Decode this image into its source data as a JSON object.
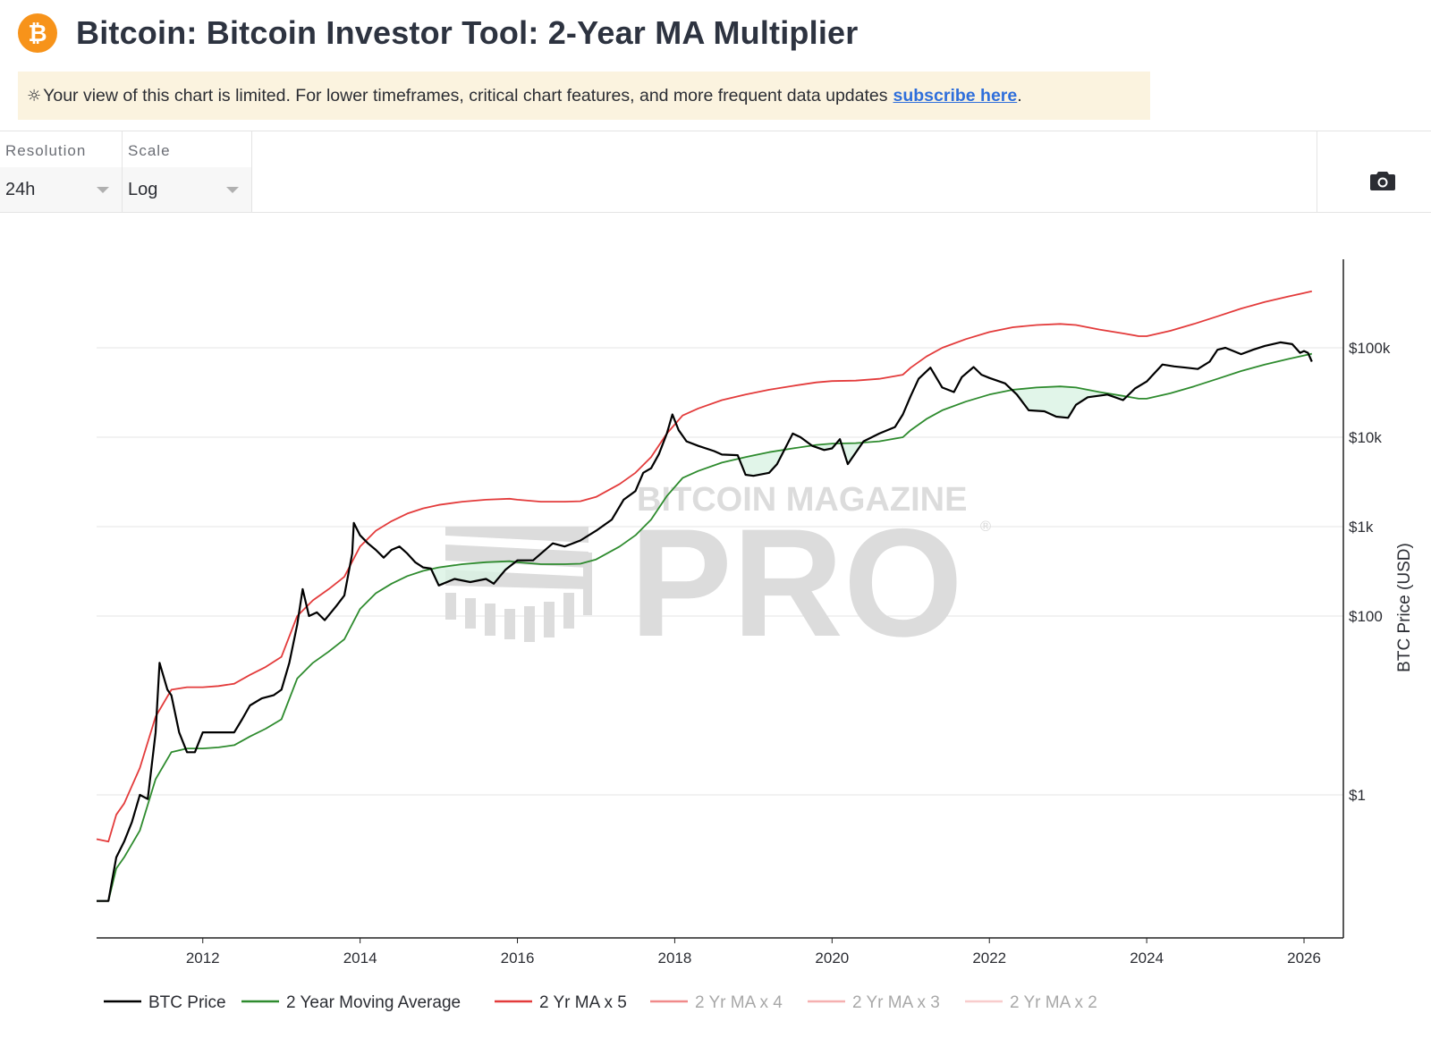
{
  "header": {
    "title": "Bitcoin: Bitcoin Investor Tool: 2-Year MA Multiplier",
    "logo_glyph": "₿",
    "logo_color": "#f7931a"
  },
  "notice": {
    "icon": "sun-icon",
    "text": "Your view of this chart is limited. For lower timeframes, critical chart features, and more frequent data updates",
    "link_text": "subscribe here",
    "suffix": "."
  },
  "controls": {
    "resolution": {
      "label": "Resolution",
      "value": "24h"
    },
    "scale": {
      "label": "Scale",
      "value": "Log"
    },
    "screenshot_icon": "camera-icon"
  },
  "watermark": {
    "top": "BITCOIN MAGAZINE",
    "main": "PRO",
    "mark": "®"
  },
  "chart_data": {
    "type": "line",
    "ylabel": "BTC Price (USD)",
    "yscale": "log",
    "ylim": [
      0.05,
      1000000
    ],
    "xlim": [
      2010.65,
      2026.5
    ],
    "x_ticks": [
      "2012",
      "2014",
      "2016",
      "2018",
      "2020",
      "2022",
      "2024",
      "2026"
    ],
    "y_ticks": [
      {
        "value": 1,
        "label": "$1"
      },
      {
        "value": 100,
        "label": "$100"
      },
      {
        "value": 1000,
        "label": "$1k"
      },
      {
        "value": 10000,
        "label": "$10k"
      },
      {
        "value": 100000,
        "label": "$100k"
      }
    ],
    "grid": true,
    "legend_position": "bottom",
    "series": [
      {
        "name": "BTC Price",
        "color": "#000000",
        "points": [
          [
            2010.65,
            0.065
          ],
          [
            2010.8,
            0.065
          ],
          [
            2010.9,
            0.2
          ],
          [
            2011.0,
            0.3
          ],
          [
            2011.1,
            0.5
          ],
          [
            2011.2,
            1.0
          ],
          [
            2011.3,
            0.9
          ],
          [
            2011.4,
            5
          ],
          [
            2011.45,
            30
          ],
          [
            2011.55,
            15
          ],
          [
            2011.6,
            13
          ],
          [
            2011.7,
            5
          ],
          [
            2011.8,
            3
          ],
          [
            2011.9,
            3
          ],
          [
            2012.0,
            5
          ],
          [
            2012.2,
            5
          ],
          [
            2012.4,
            5
          ],
          [
            2012.5,
            7
          ],
          [
            2012.6,
            10
          ],
          [
            2012.75,
            12
          ],
          [
            2012.9,
            13
          ],
          [
            2013.0,
            15
          ],
          [
            2013.1,
            30
          ],
          [
            2013.2,
            80
          ],
          [
            2013.27,
            200
          ],
          [
            2013.35,
            100
          ],
          [
            2013.45,
            110
          ],
          [
            2013.55,
            90
          ],
          [
            2013.7,
            130
          ],
          [
            2013.8,
            170
          ],
          [
            2013.9,
            500
          ],
          [
            2013.92,
            1100
          ],
          [
            2014.0,
            800
          ],
          [
            2014.1,
            650
          ],
          [
            2014.2,
            550
          ],
          [
            2014.3,
            450
          ],
          [
            2014.4,
            550
          ],
          [
            2014.5,
            600
          ],
          [
            2014.6,
            500
          ],
          [
            2014.7,
            400
          ],
          [
            2014.8,
            350
          ],
          [
            2014.9,
            340
          ],
          [
            2015.0,
            220
          ],
          [
            2015.2,
            260
          ],
          [
            2015.4,
            240
          ],
          [
            2015.6,
            260
          ],
          [
            2015.7,
            230
          ],
          [
            2015.85,
            330
          ],
          [
            2016.0,
            420
          ],
          [
            2016.2,
            420
          ],
          [
            2016.45,
            650
          ],
          [
            2016.6,
            600
          ],
          [
            2016.8,
            700
          ],
          [
            2017.0,
            900
          ],
          [
            2017.2,
            1200
          ],
          [
            2017.35,
            2000
          ],
          [
            2017.5,
            2500
          ],
          [
            2017.6,
            4000
          ],
          [
            2017.7,
            4500
          ],
          [
            2017.8,
            6500
          ],
          [
            2017.9,
            11000
          ],
          [
            2017.97,
            18000
          ],
          [
            2018.05,
            12000
          ],
          [
            2018.15,
            9000
          ],
          [
            2018.3,
            8000
          ],
          [
            2018.5,
            7000
          ],
          [
            2018.6,
            6400
          ],
          [
            2018.8,
            6300
          ],
          [
            2018.9,
            3800
          ],
          [
            2019.0,
            3700
          ],
          [
            2019.2,
            4000
          ],
          [
            2019.3,
            5000
          ],
          [
            2019.5,
            11000
          ],
          [
            2019.6,
            10000
          ],
          [
            2019.75,
            8000
          ],
          [
            2019.9,
            7200
          ],
          [
            2020.0,
            7500
          ],
          [
            2020.1,
            9500
          ],
          [
            2020.2,
            5000
          ],
          [
            2020.4,
            9000
          ],
          [
            2020.6,
            11000
          ],
          [
            2020.8,
            13000
          ],
          [
            2020.9,
            18000
          ],
          [
            2021.0,
            29000
          ],
          [
            2021.1,
            45000
          ],
          [
            2021.25,
            60000
          ],
          [
            2021.4,
            36000
          ],
          [
            2021.55,
            32000
          ],
          [
            2021.65,
            47000
          ],
          [
            2021.8,
            61000
          ],
          [
            2021.9,
            50000
          ],
          [
            2022.0,
            46000
          ],
          [
            2022.2,
            40000
          ],
          [
            2022.35,
            30000
          ],
          [
            2022.5,
            20000
          ],
          [
            2022.7,
            19500
          ],
          [
            2022.85,
            17000
          ],
          [
            2023.0,
            16500
          ],
          [
            2023.1,
            23000
          ],
          [
            2023.25,
            28000
          ],
          [
            2023.5,
            30000
          ],
          [
            2023.7,
            26000
          ],
          [
            2023.85,
            35000
          ],
          [
            2024.0,
            42000
          ],
          [
            2024.2,
            65000
          ],
          [
            2024.35,
            62000
          ],
          [
            2024.5,
            60000
          ],
          [
            2024.65,
            58000
          ],
          [
            2024.8,
            70000
          ],
          [
            2024.9,
            95000
          ],
          [
            2025.0,
            100000
          ],
          [
            2025.2,
            85000
          ],
          [
            2025.35,
            95000
          ],
          [
            2025.5,
            105000
          ],
          [
            2025.7,
            115000
          ],
          [
            2025.85,
            110000
          ],
          [
            2025.95,
            88000
          ],
          [
            2026.0,
            92000
          ],
          [
            2026.05,
            88000
          ],
          [
            2026.1,
            70000
          ]
        ]
      },
      {
        "name": "2 Year Moving Average",
        "color": "#2e8b2e",
        "points": [
          [
            2010.65,
            0.065
          ],
          [
            2010.8,
            0.065
          ],
          [
            2010.9,
            0.15
          ],
          [
            2011.0,
            0.2
          ],
          [
            2011.2,
            0.4
          ],
          [
            2011.4,
            1.5
          ],
          [
            2011.6,
            3
          ],
          [
            2011.8,
            3.3
          ],
          [
            2012.0,
            3.3
          ],
          [
            2012.2,
            3.4
          ],
          [
            2012.4,
            3.6
          ],
          [
            2012.6,
            4.5
          ],
          [
            2012.8,
            5.5
          ],
          [
            2013.0,
            7
          ],
          [
            2013.2,
            20
          ],
          [
            2013.4,
            30
          ],
          [
            2013.6,
            40
          ],
          [
            2013.8,
            55
          ],
          [
            2014.0,
            120
          ],
          [
            2014.2,
            180
          ],
          [
            2014.4,
            230
          ],
          [
            2014.6,
            280
          ],
          [
            2014.8,
            320
          ],
          [
            2015.0,
            350
          ],
          [
            2015.3,
            380
          ],
          [
            2015.6,
            400
          ],
          [
            2015.9,
            410
          ],
          [
            2016.0,
            400
          ],
          [
            2016.3,
            380
          ],
          [
            2016.6,
            380
          ],
          [
            2016.8,
            385
          ],
          [
            2017.0,
            430
          ],
          [
            2017.3,
            600
          ],
          [
            2017.5,
            800
          ],
          [
            2017.7,
            1200
          ],
          [
            2017.9,
            2200
          ],
          [
            2018.1,
            3500
          ],
          [
            2018.3,
            4200
          ],
          [
            2018.6,
            5200
          ],
          [
            2018.9,
            6000
          ],
          [
            2019.2,
            6800
          ],
          [
            2019.5,
            7500
          ],
          [
            2019.8,
            8200
          ],
          [
            2020.0,
            8500
          ],
          [
            2020.3,
            8600
          ],
          [
            2020.6,
            9000
          ],
          [
            2020.9,
            10000
          ],
          [
            2021.0,
            12000
          ],
          [
            2021.2,
            16000
          ],
          [
            2021.4,
            20000
          ],
          [
            2021.7,
            25000
          ],
          [
            2022.0,
            30000
          ],
          [
            2022.3,
            34000
          ],
          [
            2022.6,
            36000
          ],
          [
            2022.9,
            37000
          ],
          [
            2023.1,
            36000
          ],
          [
            2023.4,
            32000
          ],
          [
            2023.7,
            29000
          ],
          [
            2023.9,
            27000
          ],
          [
            2024.0,
            27000
          ],
          [
            2024.3,
            31000
          ],
          [
            2024.6,
            37000
          ],
          [
            2024.9,
            45000
          ],
          [
            2025.2,
            55000
          ],
          [
            2025.5,
            65000
          ],
          [
            2025.8,
            75000
          ],
          [
            2026.0,
            82000
          ],
          [
            2026.1,
            86000
          ]
        ]
      },
      {
        "name": "2 Yr MA x 5",
        "color": "#e33b3b",
        "points": [
          [
            2010.65,
            0.32
          ],
          [
            2010.8,
            0.3
          ],
          [
            2010.9,
            0.6
          ],
          [
            2011.0,
            0.8
          ],
          [
            2011.2,
            2
          ],
          [
            2011.4,
            7.5
          ],
          [
            2011.6,
            15
          ],
          [
            2011.8,
            16
          ],
          [
            2012.0,
            16
          ],
          [
            2012.2,
            16.5
          ],
          [
            2012.4,
            17.5
          ],
          [
            2012.6,
            22
          ],
          [
            2012.8,
            27
          ],
          [
            2013.0,
            35
          ],
          [
            2013.2,
            100
          ],
          [
            2013.4,
            150
          ],
          [
            2013.6,
            200
          ],
          [
            2013.8,
            275
          ],
          [
            2014.0,
            600
          ],
          [
            2014.2,
            900
          ],
          [
            2014.4,
            1150
          ],
          [
            2014.6,
            1400
          ],
          [
            2014.8,
            1600
          ],
          [
            2015.0,
            1750
          ],
          [
            2015.3,
            1900
          ],
          [
            2015.6,
            2000
          ],
          [
            2015.9,
            2050
          ],
          [
            2016.0,
            2000
          ],
          [
            2016.3,
            1900
          ],
          [
            2016.6,
            1900
          ],
          [
            2016.8,
            1925
          ],
          [
            2017.0,
            2150
          ],
          [
            2017.3,
            3000
          ],
          [
            2017.5,
            4000
          ],
          [
            2017.7,
            6000
          ],
          [
            2017.9,
            11000
          ],
          [
            2018.1,
            17500
          ],
          [
            2018.3,
            21000
          ],
          [
            2018.6,
            26000
          ],
          [
            2018.9,
            30000
          ],
          [
            2019.2,
            34000
          ],
          [
            2019.5,
            37500
          ],
          [
            2019.8,
            41000
          ],
          [
            2020.0,
            42500
          ],
          [
            2020.3,
            43000
          ],
          [
            2020.6,
            45000
          ],
          [
            2020.9,
            50000
          ],
          [
            2021.0,
            60000
          ],
          [
            2021.2,
            80000
          ],
          [
            2021.4,
            100000
          ],
          [
            2021.7,
            125000
          ],
          [
            2022.0,
            150000
          ],
          [
            2022.3,
            170000
          ],
          [
            2022.6,
            180000
          ],
          [
            2022.9,
            185000
          ],
          [
            2023.1,
            180000
          ],
          [
            2023.4,
            160000
          ],
          [
            2023.7,
            145000
          ],
          [
            2023.9,
            135000
          ],
          [
            2024.0,
            135000
          ],
          [
            2024.3,
            155000
          ],
          [
            2024.6,
            185000
          ],
          [
            2024.9,
            225000
          ],
          [
            2025.2,
            275000
          ],
          [
            2025.5,
            325000
          ],
          [
            2025.8,
            375000
          ],
          [
            2026.0,
            410000
          ],
          [
            2026.1,
            430000
          ]
        ]
      },
      {
        "name": "2 Yr MA x 4",
        "color": "#f08a8a",
        "hidden": true
      },
      {
        "name": "2 Yr MA x 3",
        "color": "#f5b0b0",
        "hidden": true
      },
      {
        "name": "2 Yr MA x 2",
        "color": "#f8cccc",
        "hidden": true
      }
    ]
  }
}
